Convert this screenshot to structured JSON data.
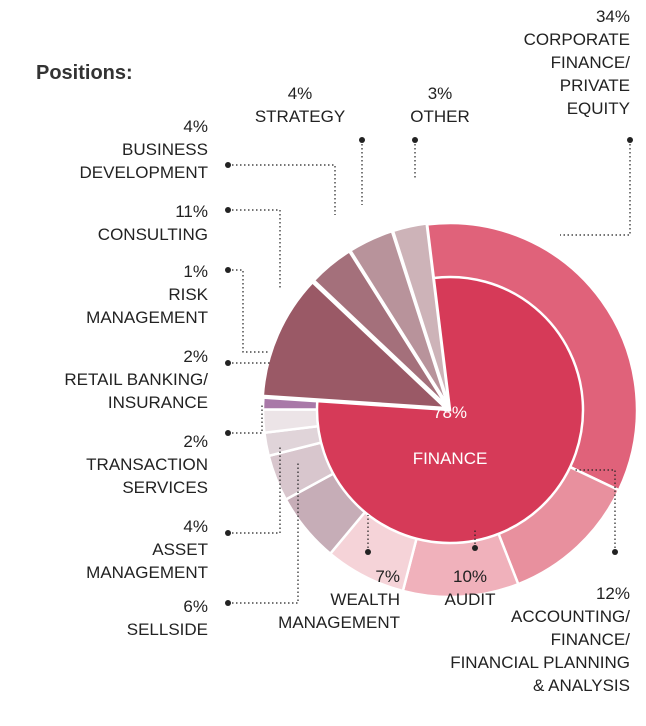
{
  "chart_data": {
    "type": "pie",
    "title": "Positions:",
    "finance": {
      "value": 78,
      "value_label": "78%",
      "name": "FINANCE",
      "color": "#d63a58"
    },
    "categories": [
      "CORPORATE\nFINANCE/\nPRIVATE\nEQUITY",
      "ACCOUNTING/\nFINANCE/\nFINANCIAL PLANNING\n& ANALYSIS",
      "AUDIT",
      "WEALTH\nMANAGEMENT",
      "SELLSIDE",
      "ASSET\nMANAGEMENT",
      "TRANSACTION\nSERVICES",
      "RETAIL BANKING/\nINSURANCE",
      "RISK\nMANAGEMENT",
      "CONSULTING",
      "BUSINESS\nDEVELOPMENT",
      "STRATEGY",
      "OTHER"
    ],
    "values": [
      34,
      12,
      10,
      7,
      6,
      4,
      2,
      2,
      1,
      11,
      4,
      4,
      3
    ],
    "value_labels": [
      "34%",
      "12%",
      "10%",
      "7%",
      "6%",
      "4%",
      "2%",
      "2%",
      "1%",
      "11%",
      "4%",
      "4%",
      "3%"
    ],
    "colors": [
      "#e0627a",
      "#e8909e",
      "#f0b1bb",
      "#f5d3d8",
      "#c6adb7",
      "#d8c6cd",
      "#e0d4d9",
      "#ece4e7",
      "#a979a8",
      "#9a5966",
      "#a4707b",
      "#b8939b",
      "#cdb3b8"
    ]
  }
}
